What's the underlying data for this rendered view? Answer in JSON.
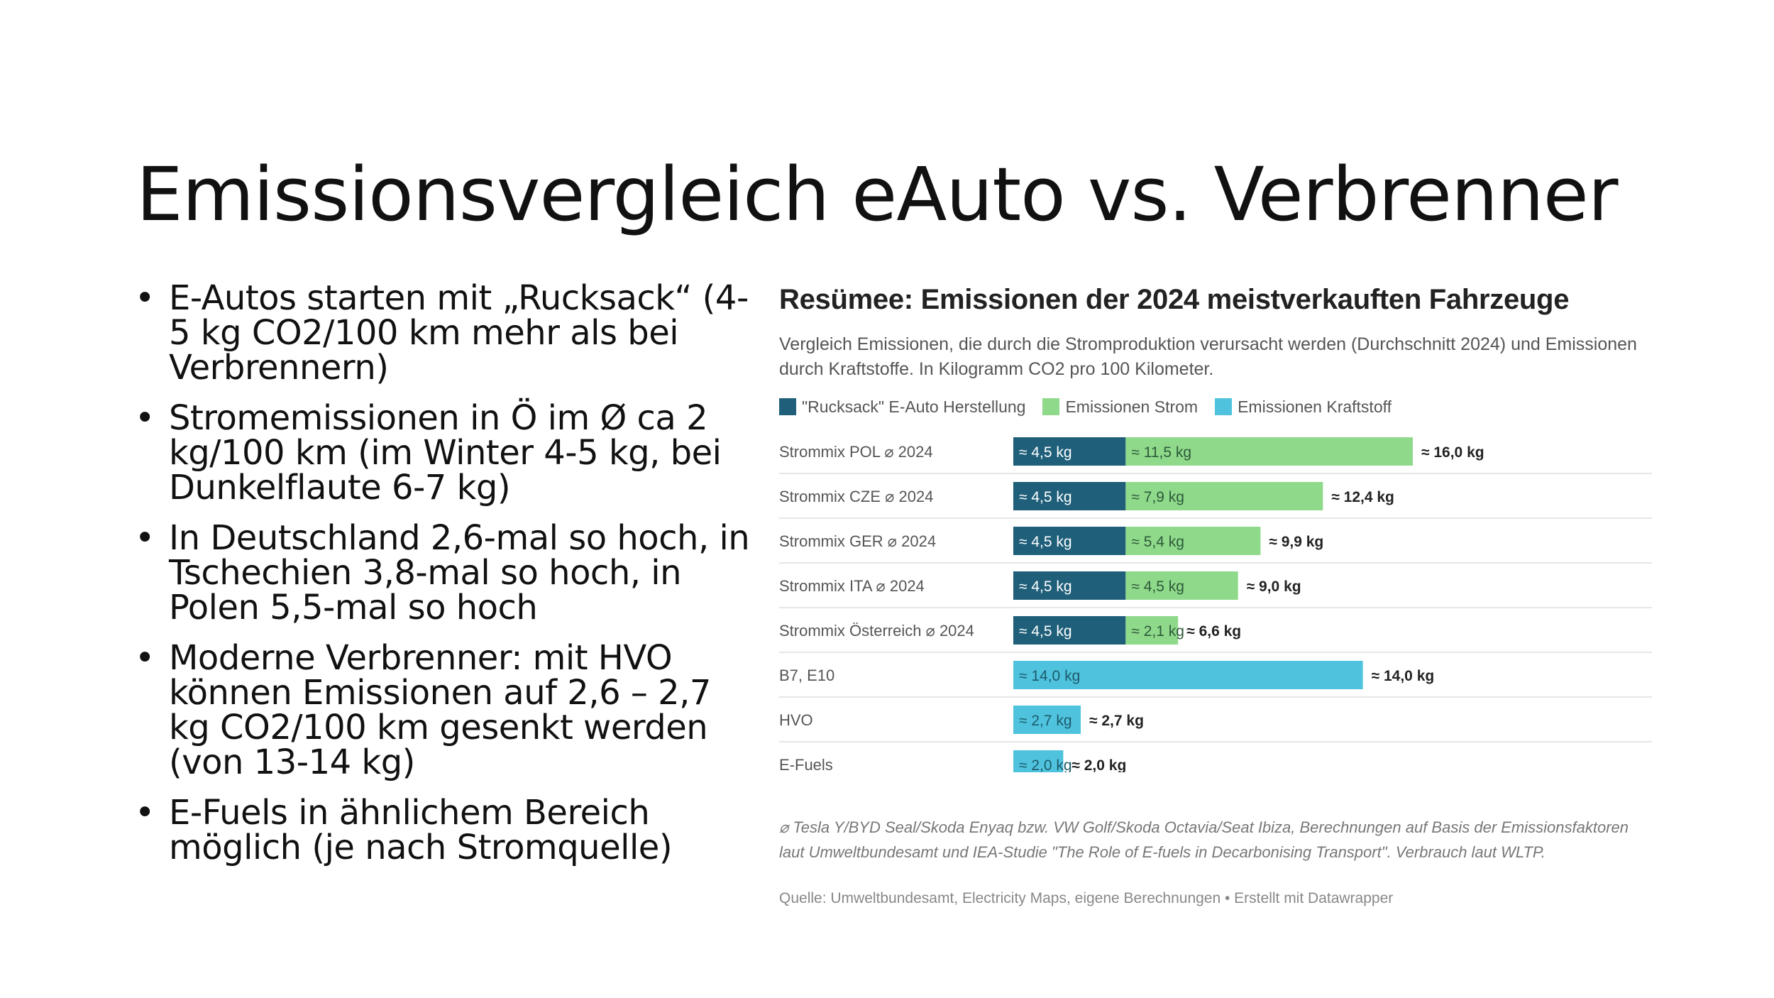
{
  "slide": {
    "title": "Emissionsvergleich eAuto vs. Verbrenner",
    "bullets": [
      "E-Autos starten mit „Rucksack“ (4-5 kg CO2/100 km mehr als bei Verbrennern)",
      "Stromemissionen in Ö im Ø ca 2 kg/100 km (im Winter 4-5 kg, bei Dunkelflaute 6-7 kg)",
      "In Deutschland 2,6-mal so hoch, in Tschechien 3,8-mal so hoch, in Polen 5,5-mal so hoch",
      "Moderne Verbrenner: mit HVO können Emissionen auf 2,6 – 2,7 kg CO2/100 km gesenkt werden (von 13-14 kg)",
      "E-Fuels in ähnlichem Bereich möglich (je nach Stromquelle)"
    ]
  },
  "chart_data": {
    "type": "bar",
    "orientation": "horizontal",
    "stacked": true,
    "title": "Resümee: Emissionen der 2024 meistverkauften Fahrzeuge",
    "subtitle": "Vergleich Emissionen, die durch die Stromproduktion verursacht werden (Durchschnitt 2024) und Emissionen durch Kraftstoffe. In Kilogramm CO2 pro 100 Kilometer.",
    "categories": [
      "Strommix POL ⌀ 2024",
      "Strommix CZE ⌀ 2024",
      "Strommix GER ⌀ 2024",
      "Strommix ITA ⌀ 2024",
      "Strommix Österreich ⌀ 2024",
      "B7, E10",
      "HVO",
      "E-Fuels"
    ],
    "series": [
      {
        "name": "\"Rucksack\" E-Auto Herstellung",
        "color": "#1f5f7a",
        "values": [
          4.5,
          4.5,
          4.5,
          4.5,
          4.5,
          0,
          0,
          0
        ],
        "labels": [
          "≈ 4,5 kg",
          "≈ 4,5 kg",
          "≈ 4,5 kg",
          "≈ 4,5 kg",
          "≈ 4,5 kg",
          "",
          "",
          ""
        ]
      },
      {
        "name": "Emissionen Strom",
        "color": "#8fd98a",
        "values": [
          11.5,
          7.9,
          5.4,
          4.5,
          2.1,
          0,
          0,
          0
        ],
        "labels": [
          "≈ 11,5 kg",
          "≈ 7,9 kg",
          "≈ 5,4 kg",
          "≈ 4,5 kg",
          "≈ 2,1 kg",
          "",
          "",
          ""
        ]
      },
      {
        "name": "Emissionen Kraftstoff",
        "color": "#4fc3de",
        "values": [
          0,
          0,
          0,
          0,
          0,
          14.0,
          2.7,
          2.0
        ],
        "labels": [
          "",
          "",
          "",
          "",
          "",
          "≈ 14,0 kg",
          "≈ 2,7 kg",
          "≈ 2,0 kg"
        ]
      }
    ],
    "totals": [
      16.0,
      12.4,
      9.9,
      9.0,
      6.6,
      14.0,
      2.7,
      2.0
    ],
    "total_labels": [
      "≈ 16,0 kg",
      "≈ 12,4 kg",
      "≈ 9,9 kg",
      "≈ 9,0 kg",
      "≈ 6,6 kg",
      "≈ 14,0 kg",
      "≈ 2,7 kg",
      "≈ 2,0 kg"
    ],
    "xlim": [
      0,
      16
    ],
    "legend": "top-left",
    "note": "⌀ Tesla Y/BYD Seal/Skoda Enyaq bzw. VW Golf/Skoda Octavia/Seat Ibiza, Berechnungen auf Basis der Emissionsfaktoren laut Umweltbundesamt und IEA-Studie \"The Role of E-fuels in Decarbonising Transport\". Verbrauch laut WLTP.",
    "source": "Quelle: Umweltbundesamt, Electricity Maps, eigene Berechnungen • Erstellt mit Datawrapper"
  }
}
